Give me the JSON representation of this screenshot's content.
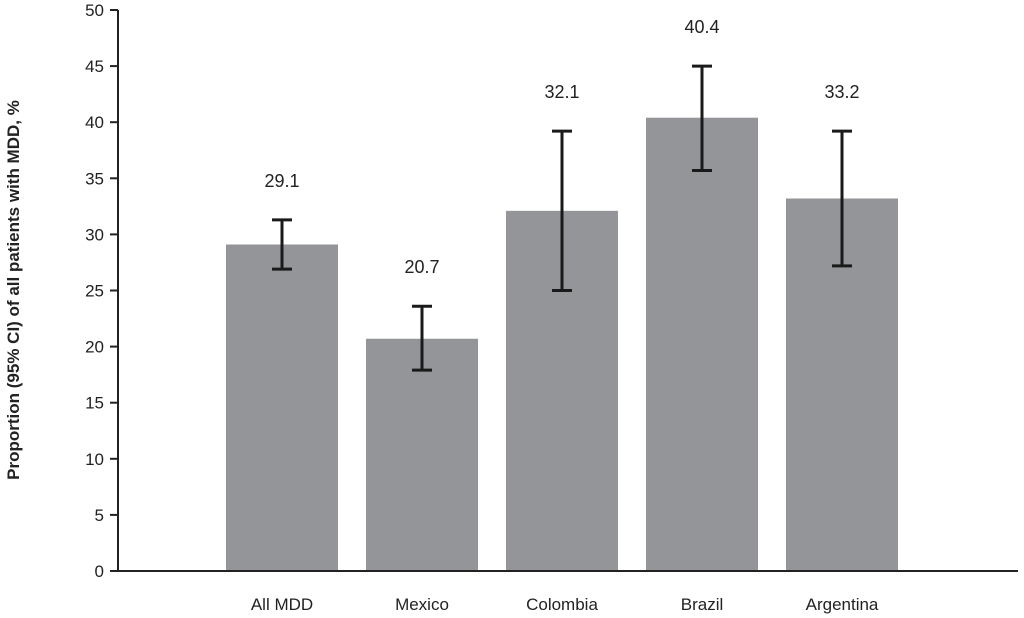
{
  "chart_data": {
    "type": "bar",
    "title": "",
    "xlabel": "",
    "ylabel": "Proportion (95% CI) of all patients with MDD, %",
    "categories": [
      "All MDD",
      "Mexico",
      "Colombia",
      "Brazil",
      "Argentina"
    ],
    "values": [
      29.1,
      20.7,
      32.1,
      40.4,
      33.2
    ],
    "value_labels": [
      "29.1",
      "20.7",
      "32.1",
      "40.4",
      "33.2"
    ],
    "ci_lower": [
      26.9,
      17.9,
      25.0,
      35.7,
      27.2
    ],
    "ci_upper": [
      31.3,
      23.6,
      39.2,
      45.0,
      39.2
    ],
    "ylim": [
      0,
      50
    ],
    "yticks": [
      0,
      5,
      10,
      15,
      20,
      25,
      30,
      35,
      40,
      45,
      50
    ],
    "grid": false,
    "colors": {
      "bar": "#939598",
      "axis": "#222222",
      "errorbar": "#1a1a1a"
    }
  }
}
